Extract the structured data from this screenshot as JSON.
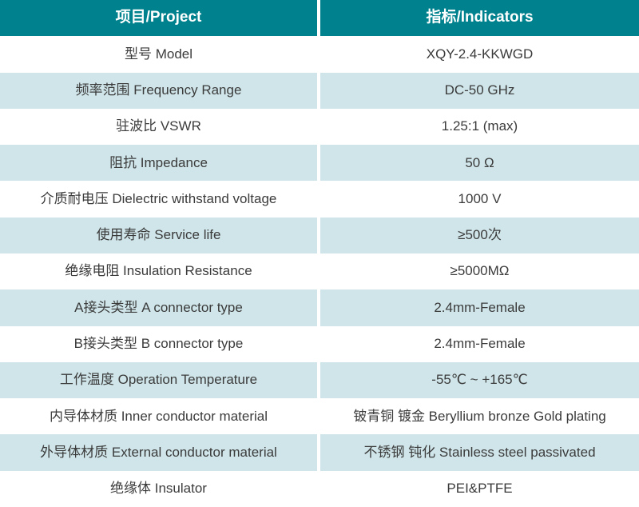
{
  "colors": {
    "header_bg": "#00828E",
    "stripe_bg": "#CFE5E9",
    "row_bg": "#FFFFFF",
    "header_text": "#FFFFFF",
    "body_text": "#3B3B3B"
  },
  "table": {
    "headers": [
      "项目/Project",
      "指标/Indicators"
    ],
    "rows": [
      {
        "project": "型号 Model",
        "indicator": "XQY-2.4-KKWGD"
      },
      {
        "project": "频率范围 Frequency Range",
        "indicator": "DC-50 GHz"
      },
      {
        "project": "驻波比 VSWR",
        "indicator": "1.25:1 (max)"
      },
      {
        "project": "阻抗 Impedance",
        "indicator": "50 Ω"
      },
      {
        "project": "介质耐电压 Dielectric withstand voltage",
        "indicator": "1000 V"
      },
      {
        "project": "使用寿命 Service life",
        "indicator": "≥500次"
      },
      {
        "project": "绝缘电阻 Insulation Resistance",
        "indicator": "≥5000MΩ"
      },
      {
        "project": "A接头类型 A connector type",
        "indicator": "2.4mm-Female"
      },
      {
        "project": "B接头类型 B connector type",
        "indicator": "2.4mm-Female"
      },
      {
        "project": "工作温度 Operation Temperature",
        "indicator": "-55℃ ~ +165℃"
      },
      {
        "project": "内导体材质 Inner conductor material",
        "indicator": "铍青铜 镀金 Beryllium bronze Gold plating"
      },
      {
        "project": "外导体材质 External conductor material",
        "indicator": "不锈钢 钝化 Stainless steel passivated"
      },
      {
        "project": "绝缘体 Insulator",
        "indicator": "PEI&PTFE"
      }
    ]
  }
}
